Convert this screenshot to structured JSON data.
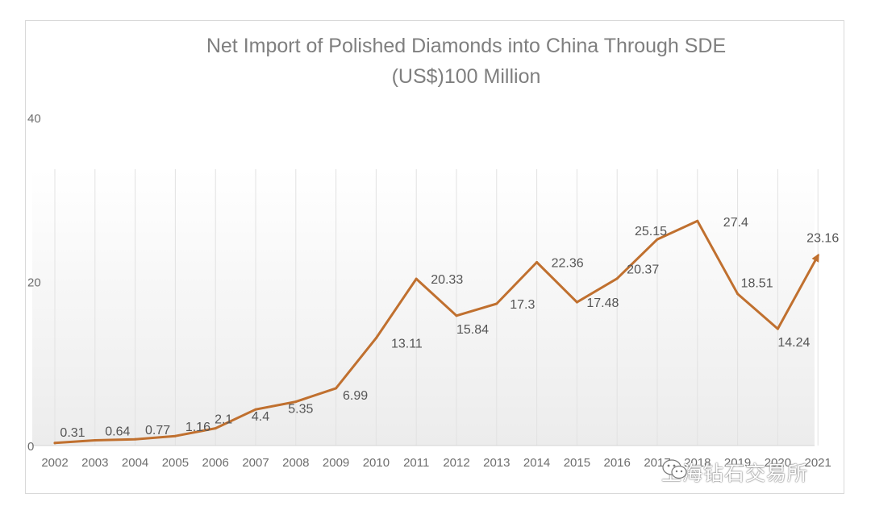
{
  "chart_data": {
    "type": "line",
    "title": "Net Import of Polished Diamonds into China Through SDE (US$)100 Million",
    "title_lines": [
      "Net Import of Polished Diamonds into China Through SDE",
      "(US$)100 Million"
    ],
    "x": [
      "2002",
      "2003",
      "2004",
      "2005",
      "2006",
      "2007",
      "2008",
      "2009",
      "2010",
      "2011",
      "2012",
      "2013",
      "2014",
      "2015",
      "2016",
      "2017",
      "2018",
      "2019",
      "2020",
      "2021"
    ],
    "series": [
      {
        "values": [
          0.31,
          0.64,
          0.77,
          1.16,
          2.1,
          4.4,
          5.35,
          6.99,
          13.11,
          20.33,
          15.84,
          17.3,
          22.36,
          17.48,
          20.37,
          25.15,
          27.4,
          18.51,
          14.24,
          23.16
        ],
        "labels": [
          "0.31",
          "0.64",
          "0.77",
          "1.16",
          "2.1",
          "4.4",
          "5.35",
          "6.99",
          "13.11",
          "20.33",
          "15.84",
          "17.3",
          "22.36",
          "17.48",
          "20.37",
          "25.15",
          "27.4",
          "18.51",
          "14.24",
          "23.16"
        ],
        "color": "#c0702f"
      }
    ],
    "yticks": [
      0,
      20,
      40
    ],
    "ylim": [
      0,
      40
    ],
    "grid": "vertical",
    "legend": "none",
    "end_marker": "arrow"
  },
  "watermark": {
    "icon": "wechat-icon",
    "text": "上海钻石交易所"
  },
  "colors": {
    "line": "#c0702f",
    "title": "#7f7f7f",
    "axis_text": "#6e6e6e",
    "frame": "#d9d9d9"
  }
}
